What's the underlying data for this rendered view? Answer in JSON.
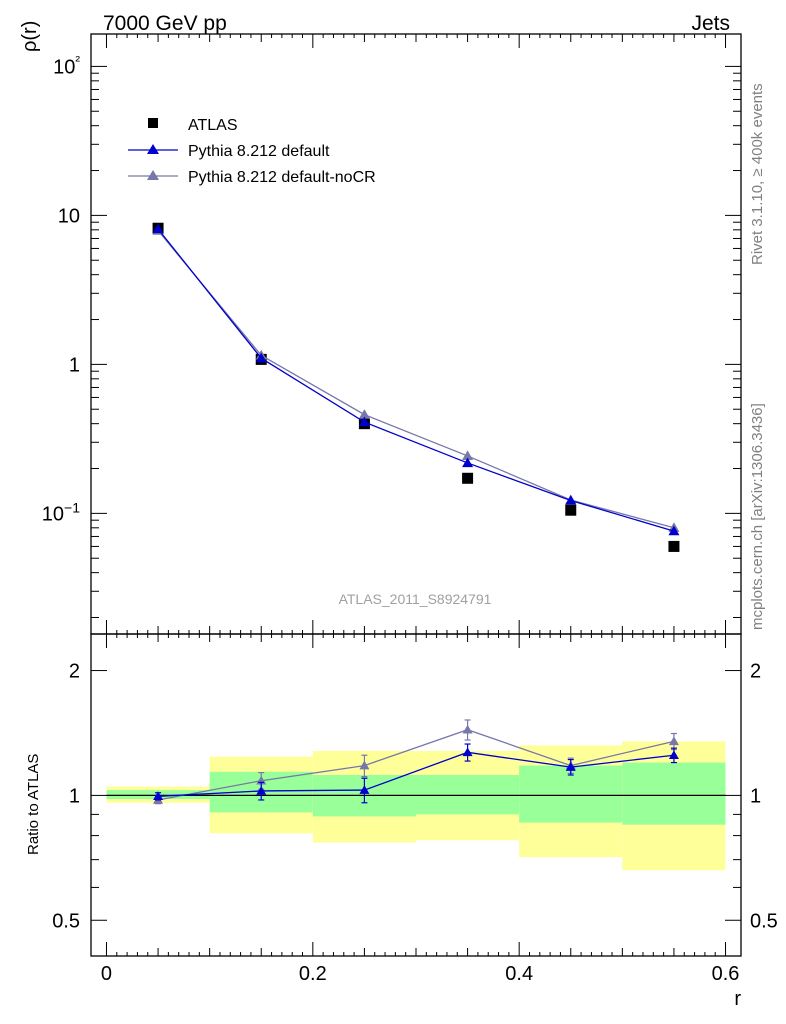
{
  "header": {
    "title_left": "7000 GeV pp",
    "title_right": "Jets"
  },
  "side_labels": {
    "rivet": "Rivet 3.1.10, ≥ 400k events",
    "mcplots": "mcplots.cern.ch [arXiv:1306.3436]"
  },
  "analysis_id": "ATLAS_2011_S8924791",
  "chart_data": [
    {
      "type": "scatter",
      "title": "",
      "xlabel": "r",
      "ylabel": "ρ(r)",
      "yscale": "log",
      "xlim": [
        -0.015,
        0.615
      ],
      "ylim": [
        0.0155,
        165
      ],
      "x_tick_labels": [
        "0",
        "0.2",
        "0.4",
        "0.6"
      ],
      "y_tick_labels": [
        "10−1",
        "1",
        "10",
        "10²"
      ],
      "legend": {
        "placement": "top-left",
        "entries": [
          "ATLAS",
          "Pythia 8.212 default",
          "Pythia 8.212 default-noCR"
        ]
      },
      "x": [
        0.05,
        0.15,
        0.25,
        0.35,
        0.45,
        0.55
      ],
      "series": [
        {
          "name": "ATLAS",
          "style": "square-markers",
          "color": "#000000",
          "values": [
            8.2,
            1.08,
            0.4,
            0.172,
            0.105,
            0.06
          ]
        },
        {
          "name": "Pythia 8.212 default",
          "style": "line-triangles",
          "color": "#0000cc",
          "values": [
            8.1,
            1.1,
            0.41,
            0.218,
            0.122,
            0.076
          ]
        },
        {
          "name": "Pythia 8.212 default-noCR",
          "style": "line-triangles",
          "color": "#7777aa",
          "values": [
            7.9,
            1.15,
            0.46,
            0.243,
            0.123,
            0.08
          ]
        }
      ]
    },
    {
      "type": "line",
      "xlabel": "r",
      "ylabel": "Ratio to ATLAS",
      "yscale": "log",
      "xlim": [
        -0.015,
        0.615
      ],
      "ylim": [
        0.41,
        2.45
      ],
      "x_tick_labels": [
        "0",
        "0.2",
        "0.4",
        "0.6"
      ],
      "y_tick_labels": [
        "0.5",
        "1",
        "2"
      ],
      "reference_line": 1.0,
      "bin_edges": [
        0.0,
        0.1,
        0.2,
        0.3,
        0.4,
        0.5,
        0.6
      ],
      "bands": {
        "outer_color": "#ffff99",
        "inner_color": "#99ff99",
        "outer": [
          [
            0.96,
            1.05
          ],
          [
            0.81,
            1.24
          ],
          [
            0.77,
            1.28
          ],
          [
            0.78,
            1.28
          ],
          [
            0.71,
            1.32
          ],
          [
            0.66,
            1.35
          ]
        ],
        "inner": [
          [
            0.98,
            1.03
          ],
          [
            0.91,
            1.14
          ],
          [
            0.89,
            1.12
          ],
          [
            0.9,
            1.12
          ],
          [
            0.86,
            1.18
          ],
          [
            0.85,
            1.2
          ]
        ]
      },
      "x": [
        0.05,
        0.15,
        0.25,
        0.35,
        0.45,
        0.55
      ],
      "series": [
        {
          "name": "Pythia 8.212 default",
          "color": "#0000cc",
          "values": [
            0.995,
            1.025,
            1.03,
            1.27,
            1.17,
            1.25
          ],
          "errors": [
            0.02,
            0.05,
            0.07,
            0.06,
            0.05,
            0.05
          ]
        },
        {
          "name": "Pythia 8.212 default-noCR",
          "color": "#7777aa",
          "values": [
            0.975,
            1.085,
            1.18,
            1.44,
            1.18,
            1.35
          ],
          "errors": [
            0.02,
            0.05,
            0.07,
            0.08,
            0.05,
            0.06
          ]
        }
      ]
    }
  ]
}
